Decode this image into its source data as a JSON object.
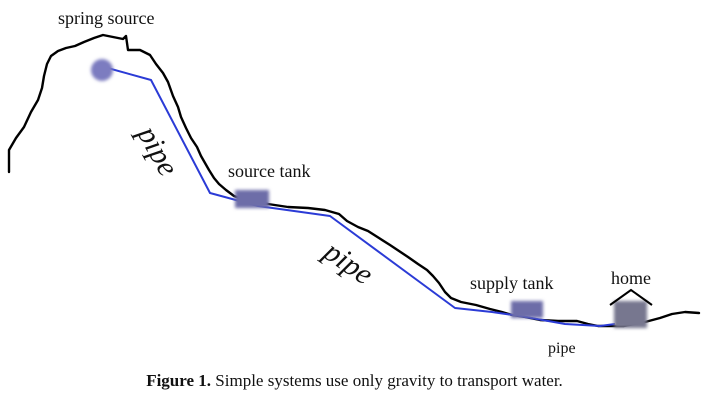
{
  "labels": {
    "spring_source": "spring source",
    "source_tank": "source tank",
    "supply_tank": "supply tank",
    "home": "home",
    "pipe_1": "pipe",
    "pipe_2": "pipe",
    "pipe_3": "pipe"
  },
  "caption": {
    "prefix": "Figure 1.",
    "text": "Simple systems use only gravity to transport water."
  },
  "colors": {
    "terrain": "#000000",
    "pipe": "#2b3bd6",
    "spring": "#7b7bc0",
    "tank": "#6d6da8",
    "house": "#77778f"
  }
}
